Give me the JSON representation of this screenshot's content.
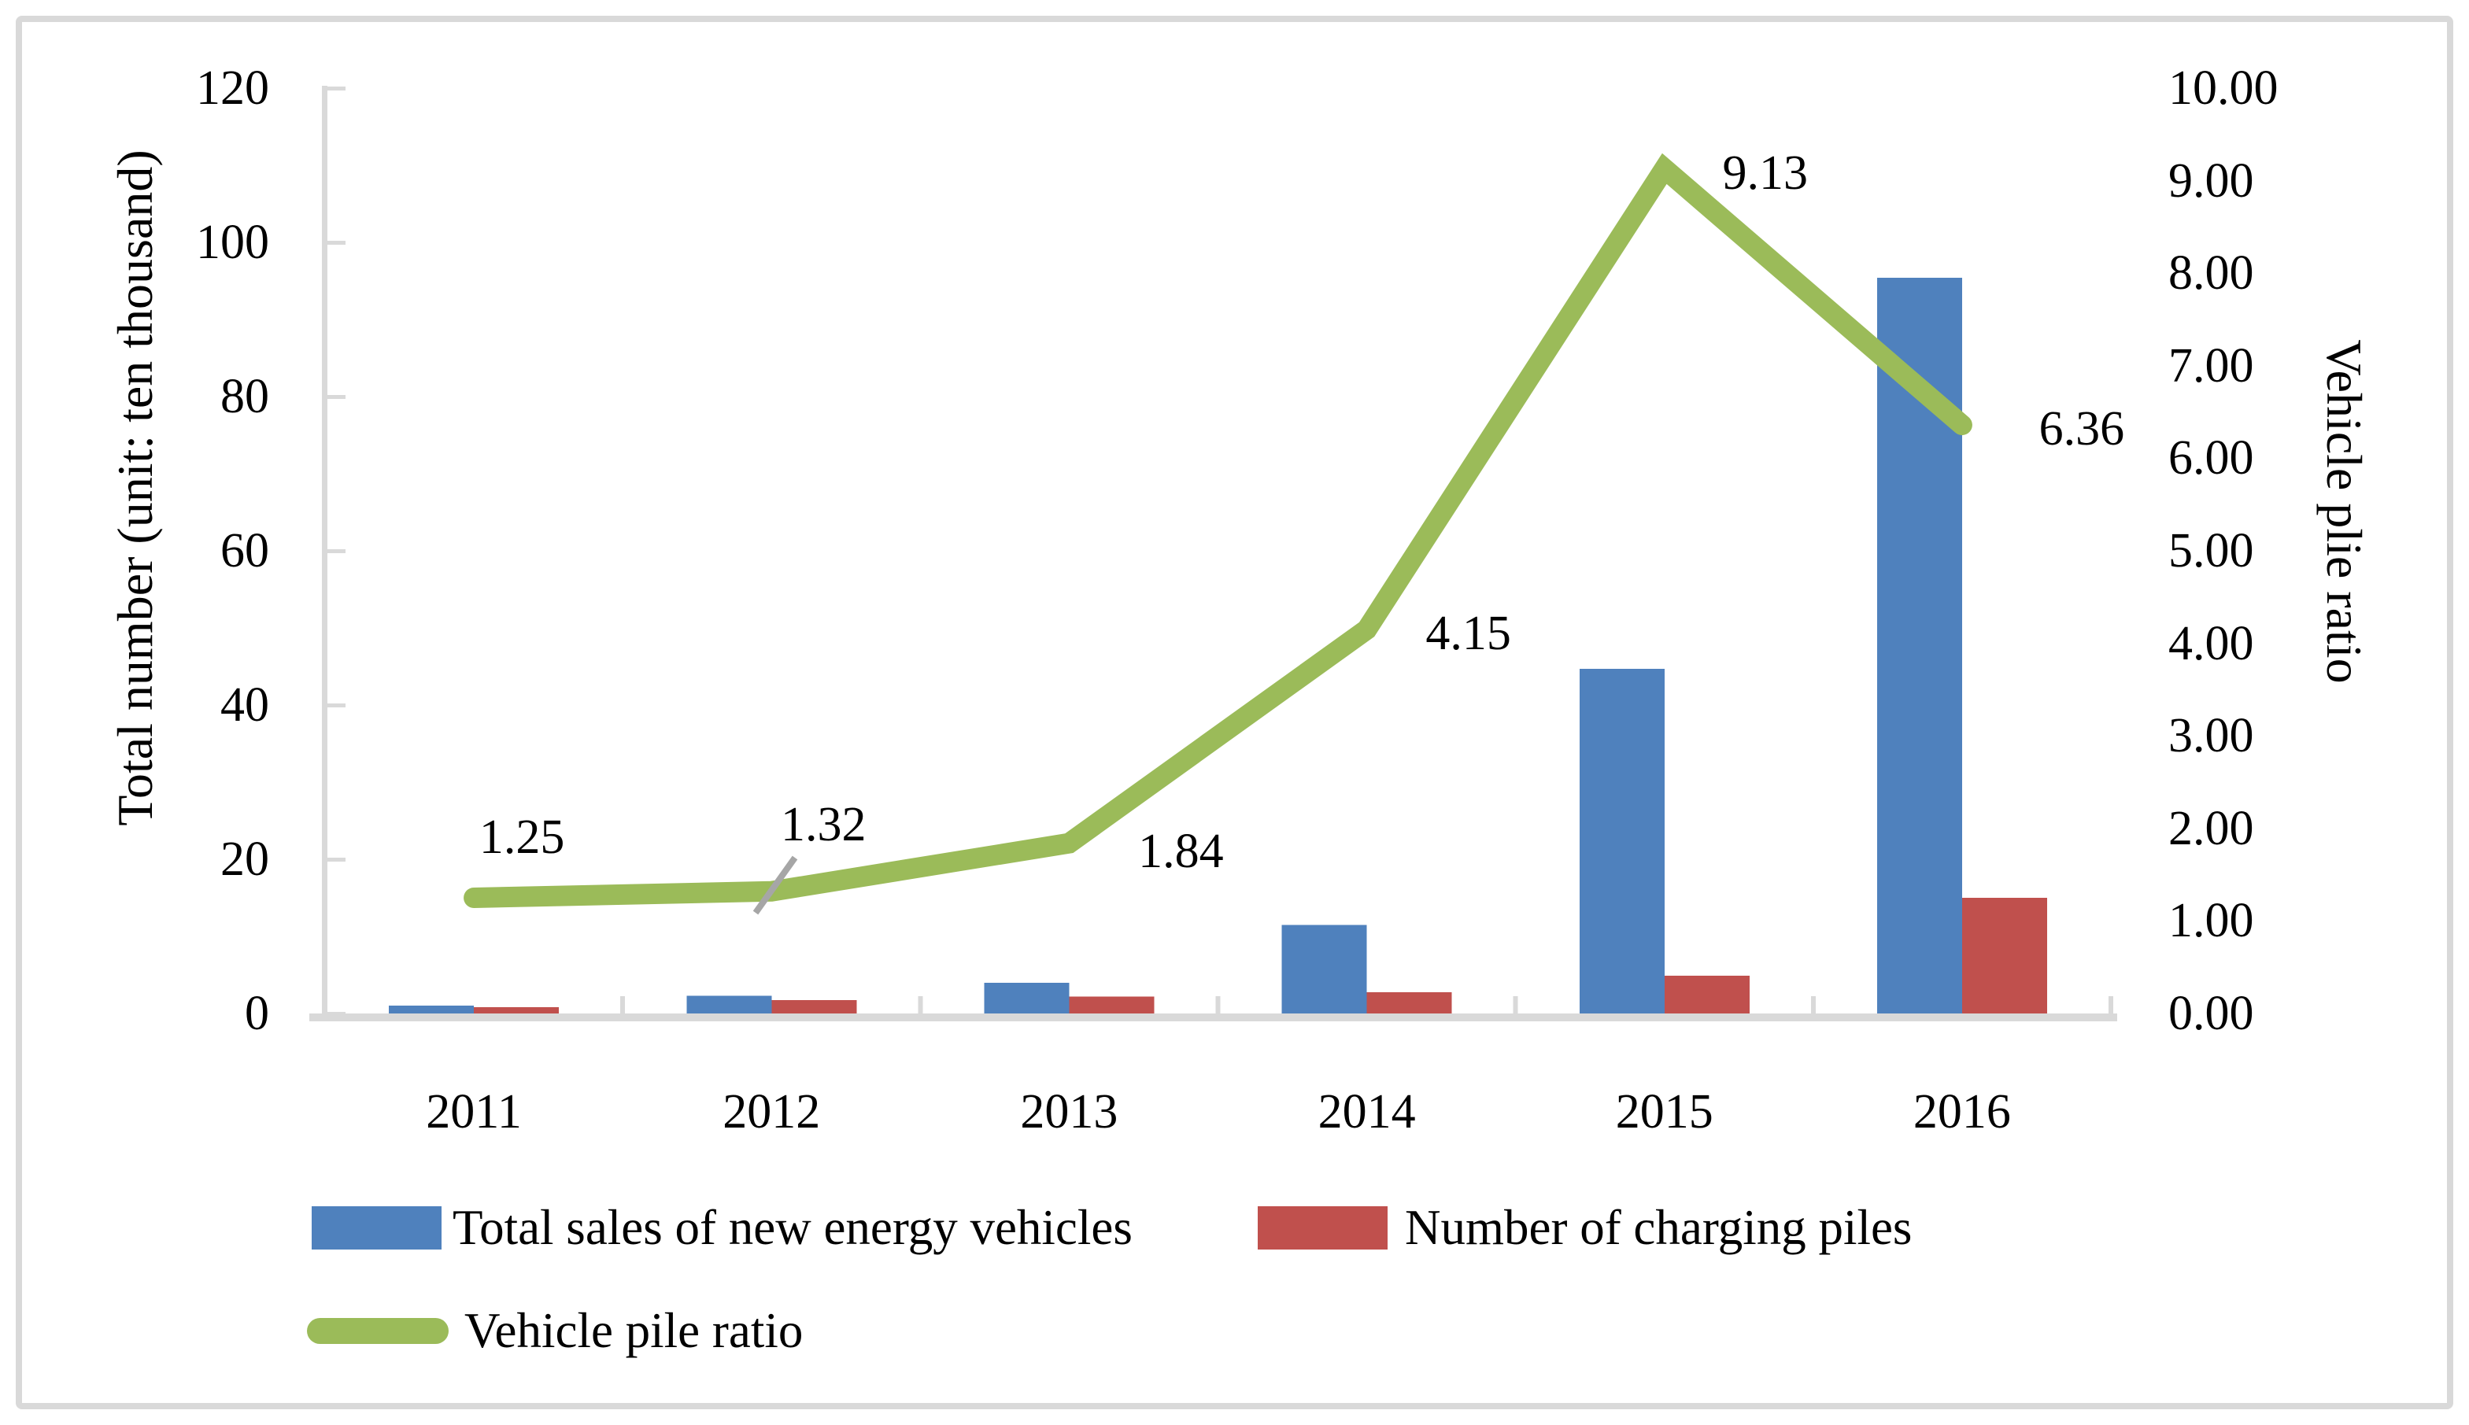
{
  "chart_data": {
    "type": "bar+line",
    "categories": [
      "2011",
      "2012",
      "2013",
      "2014",
      "2015",
      "2016"
    ],
    "series": [
      {
        "name": "Total sales of new energy vehicles",
        "type": "bar",
        "axis": "left",
        "color": "#4F81BD",
        "values": [
          1.0,
          2.3,
          4.0,
          11.5,
          44.7,
          95.4
        ]
      },
      {
        "name": "Number of charging piles",
        "type": "bar",
        "axis": "left",
        "color": "#C0504D",
        "values": [
          0.8,
          1.75,
          2.2,
          2.75,
          4.9,
          15.0
        ]
      },
      {
        "name": "Vehicle pile ratio",
        "type": "line",
        "axis": "right",
        "color": "#9BBB59",
        "values": [
          1.25,
          1.32,
          1.84,
          4.15,
          9.13,
          6.36
        ],
        "data_labels": [
          "1.25",
          "1.32",
          "1.84",
          "4.15",
          "9.13",
          "6.36"
        ]
      }
    ],
    "left_axis": {
      "title": "Total number (unit: ten thousand)",
      "min": 0,
      "max": 120,
      "step": 20,
      "tick_labels": [
        "0",
        "20",
        "40",
        "60",
        "80",
        "100",
        "120"
      ]
    },
    "right_axis": {
      "title": "Vehicle plie ratio",
      "min": 0,
      "max": 10,
      "step": 1,
      "tick_labels": [
        "0.00",
        "1.00",
        "2.00",
        "3.00",
        "4.00",
        "5.00",
        "6.00",
        "7.00",
        "8.00",
        "9.00",
        "10.00"
      ]
    },
    "grid": false,
    "legend_position": "bottom-left"
  },
  "colors": {
    "axis": "#D9D9D9",
    "leader_line": "#A6A6A6",
    "text": "#000000",
    "background": "#FFFFFF",
    "border": "#D9D9D9"
  }
}
